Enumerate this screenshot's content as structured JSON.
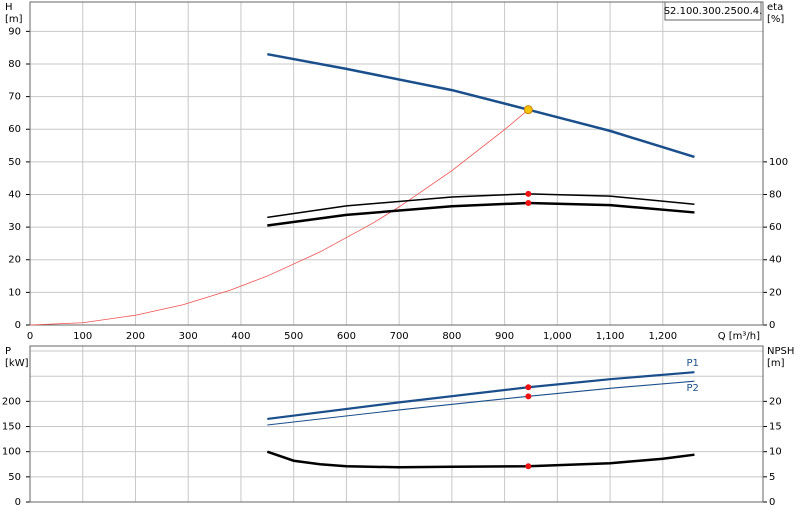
{
  "charts": [
    {
      "type": "line",
      "ylabel": [
        "H",
        "[m]"
      ],
      "y2label": [
        "eta",
        "[%]"
      ],
      "xlabel": "Q [m³/h]",
      "id_label": "S2.100.300.2500.4.",
      "xlim": [
        0,
        1390
      ],
      "ylim": [
        0,
        99
      ],
      "y2lim": [
        0,
        198
      ],
      "xticks": [
        0,
        100,
        200,
        300,
        400,
        500,
        600,
        700,
        800,
        900,
        {
          "value": 1000,
          "label": "1,000"
        },
        {
          "value": 1100,
          "label": "1,100"
        },
        {
          "value": 1200,
          "label": "1,200"
        }
      ],
      "yticks": [
        0,
        10,
        20,
        30,
        40,
        50,
        60,
        70,
        80,
        90
      ],
      "y2ticks": [
        0,
        20,
        40,
        60,
        80,
        100
      ],
      "grid": true,
      "duty_flow": 945,
      "series": [
        {
          "color": "#1a4f8b",
          "width": 2.5,
          "duty_color": "#f5c400",
          "x": [
            450,
            600,
            800,
            945,
            1100,
            1260
          ],
          "values": [
            83,
            78.5,
            72,
            66,
            59.5,
            51.5
          ]
        },
        {
          "color": "#f05050",
          "width": 0.8,
          "x": [
            0,
            100,
            200,
            290,
            380,
            450,
            550,
            650,
            700,
            800,
            900,
            945
          ],
          "values": [
            0,
            0.7,
            3,
            6.2,
            10.7,
            15,
            22.4,
            31.2,
            36.2,
            47.3,
            59.9,
            66
          ]
        },
        {
          "color": "#000000",
          "width": 1.5,
          "axis": "y2",
          "duty_color": "#ee1111",
          "x": [
            450,
            600,
            800,
            945,
            1100,
            1260
          ],
          "values": [
            66,
            73,
            78.5,
            80.4,
            79,
            74
          ]
        },
        {
          "color": "#000000",
          "width": 2.5,
          "axis": "y2",
          "duty_color": "#ee1111",
          "x": [
            450,
            600,
            800,
            945,
            1100,
            1260
          ],
          "values": [
            61,
            67.5,
            72.8,
            74.8,
            73.5,
            69
          ]
        }
      ]
    },
    {
      "type": "line",
      "ylabel": [
        "P",
        "[kW]"
      ],
      "y2label": [
        "NPSH",
        "[m]"
      ],
      "xlim": [
        0,
        1390
      ],
      "ylim": [
        0,
        310
      ],
      "y2lim": [
        0,
        31
      ],
      "xgrid": [
        0,
        100,
        200,
        300,
        400,
        500,
        600,
        700,
        800,
        900,
        1000,
        1100,
        1200
      ],
      "yticks": [
        0,
        50,
        100,
        150,
        200
      ],
      "ygrid": [
        250,
        300
      ],
      "y2ticks": [
        0,
        5,
        10,
        15,
        20
      ],
      "grid": true,
      "duty_flow": 945,
      "series": [
        {
          "name": "P1",
          "color": "#1a4f8b",
          "width": 2.2,
          "duty_color": "#ee1111",
          "x": [
            450,
            700,
            945,
            1100,
            1260
          ],
          "values": [
            165,
            198,
            228,
            244,
            258
          ]
        },
        {
          "name": "P2",
          "color": "#1a4f8b",
          "width": 1.1,
          "duty_color": "#ee1111",
          "x": [
            450,
            700,
            945,
            1100,
            1260
          ],
          "values": [
            153,
            183,
            210,
            226,
            240
          ]
        },
        {
          "color": "#000000",
          "width": 2.5,
          "axis": "y2",
          "duty_color": "#ee1111",
          "x": [
            450,
            500,
            550,
            600,
            700,
            800,
            945,
            1100,
            1200,
            1260
          ],
          "values": [
            10,
            8.2,
            7.5,
            7.1,
            6.9,
            7.0,
            7.1,
            7.7,
            8.6,
            9.4
          ]
        }
      ]
    }
  ]
}
